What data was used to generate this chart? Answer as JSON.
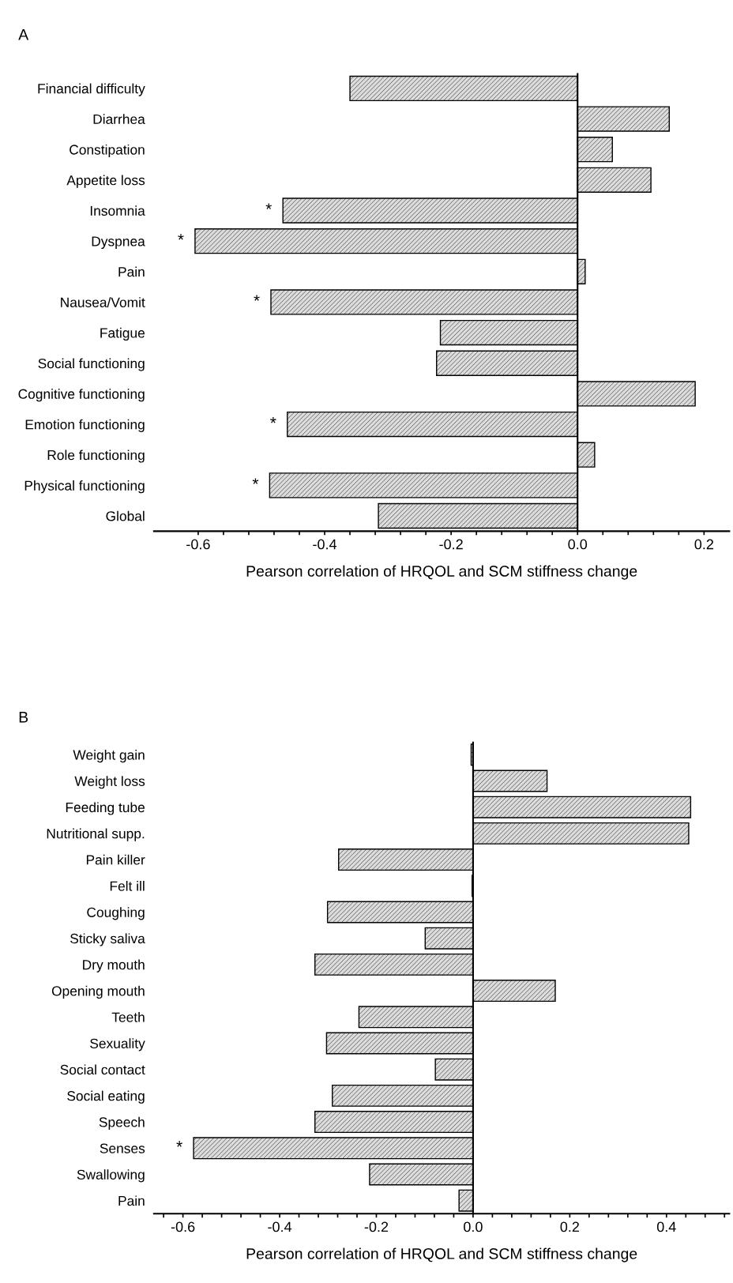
{
  "chart_data": [
    {
      "type": "bar",
      "orientation": "horizontal",
      "title": "A",
      "xlabel": "Pearson correlation of HRQOL and SCM stiffness change",
      "categories": [
        "Financial difficulty",
        "Diarrhea",
        "Constipation",
        "Appetite loss",
        "Insomnia",
        "Dyspnea",
        "Pain",
        "Nausea/Vomit",
        "Fatigue",
        "Social functioning",
        "Cognitive functioning",
        "Emotion functioning",
        "Role functioning",
        "Physical functioning",
        "Global"
      ],
      "values": [
        -0.36,
        0.145,
        0.055,
        0.116,
        -0.466,
        -0.605,
        0.012,
        -0.485,
        -0.217,
        -0.223,
        0.186,
        -0.459,
        0.027,
        -0.487,
        -0.315
      ],
      "color": "#dcdcdc",
      "xlim": [
        -0.67,
        0.24
      ],
      "xticks": [
        -0.6,
        {
          "value": -0.56,
          "label": null
        },
        {
          "value": -0.52,
          "label": null
        },
        {
          "value": -0.48,
          "label": null
        },
        {
          "value": -0.44,
          "label": null
        },
        -0.4,
        {
          "value": -0.36,
          "label": null
        },
        {
          "value": -0.32,
          "label": null
        },
        {
          "value": -0.28,
          "label": null
        },
        {
          "value": -0.24,
          "label": null
        },
        -0.2,
        {
          "value": -0.16,
          "label": null
        },
        {
          "value": -0.12,
          "label": null
        },
        {
          "value": -0.08,
          "label": null
        },
        {
          "value": -0.04,
          "label": null
        },
        {
          "value": 0,
          "label": "0.0"
        },
        {
          "value": 0.04,
          "label": null
        },
        {
          "value": 0.08,
          "label": null
        },
        {
          "value": 0.12,
          "label": null
        },
        {
          "value": 0.16,
          "label": null
        },
        0.2
      ],
      "ref_lines": [
        {
          "axis": "x",
          "value": 0
        }
      ],
      "annotations": [
        {
          "text": "*",
          "x": -0.466,
          "y": "Insomnia"
        },
        {
          "text": "*",
          "x": -0.605,
          "y": "Dyspnea"
        },
        {
          "text": "*",
          "x": -0.485,
          "y": "Nausea/Vomit"
        },
        {
          "text": "*",
          "x": -0.459,
          "y": "Emotion functioning"
        },
        {
          "text": "*",
          "x": -0.487,
          "y": "Physical functioning"
        }
      ],
      "grid": false,
      "legend": false
    },
    {
      "type": "bar",
      "orientation": "horizontal",
      "title": "B",
      "xlabel": "Pearson correlation of HRQOL and SCM stiffness change",
      "categories": [
        "Weight gain",
        "Weight loss",
        "Feeding tube",
        "Nutritional supp.",
        "Pain killer",
        "Felt ill",
        "Coughing",
        "Sticky saliva",
        "Dry mouth",
        "Opening mouth",
        "Teeth",
        "Sexuality",
        "Social contact",
        "Social eating",
        "Speech",
        "Senses",
        "Swallowing",
        "Pain"
      ],
      "values": [
        -0.004,
        0.153,
        0.45,
        0.446,
        -0.278,
        -0.002,
        -0.301,
        -0.099,
        -0.327,
        0.17,
        -0.236,
        -0.303,
        -0.078,
        -0.291,
        -0.327,
        -0.578,
        -0.214,
        -0.029
      ],
      "color": "#dcdcdc",
      "xlim": [
        -0.66,
        0.53
      ],
      "xticks": [
        {
          "value": -0.64,
          "label": null
        },
        -0.6,
        {
          "value": -0.56,
          "label": null
        },
        {
          "value": -0.52,
          "label": null
        },
        {
          "value": -0.48,
          "label": null
        },
        {
          "value": -0.44,
          "label": null
        },
        -0.4,
        {
          "value": -0.36,
          "label": null
        },
        {
          "value": -0.32,
          "label": null
        },
        {
          "value": -0.28,
          "label": null
        },
        {
          "value": -0.24,
          "label": null
        },
        -0.2,
        {
          "value": -0.16,
          "label": null
        },
        {
          "value": -0.12,
          "label": null
        },
        {
          "value": -0.08,
          "label": null
        },
        {
          "value": -0.04,
          "label": null
        },
        {
          "value": 0,
          "label": "0.0"
        },
        {
          "value": 0.04,
          "label": null
        },
        {
          "value": 0.08,
          "label": null
        },
        {
          "value": 0.12,
          "label": null
        },
        {
          "value": 0.16,
          "label": null
        },
        0.2,
        {
          "value": 0.24,
          "label": null
        },
        {
          "value": 0.28,
          "label": null
        },
        {
          "value": 0.32,
          "label": null
        },
        {
          "value": 0.36,
          "label": null
        },
        0.4,
        {
          "value": 0.44,
          "label": null
        },
        {
          "value": 0.48,
          "label": null
        },
        {
          "value": 0.52,
          "label": null
        }
      ],
      "ref_lines": [
        {
          "axis": "x",
          "value": 0
        }
      ],
      "annotations": [
        {
          "text": "*",
          "x": -0.578,
          "y": "Senses"
        }
      ],
      "grid": false,
      "legend": false
    }
  ]
}
